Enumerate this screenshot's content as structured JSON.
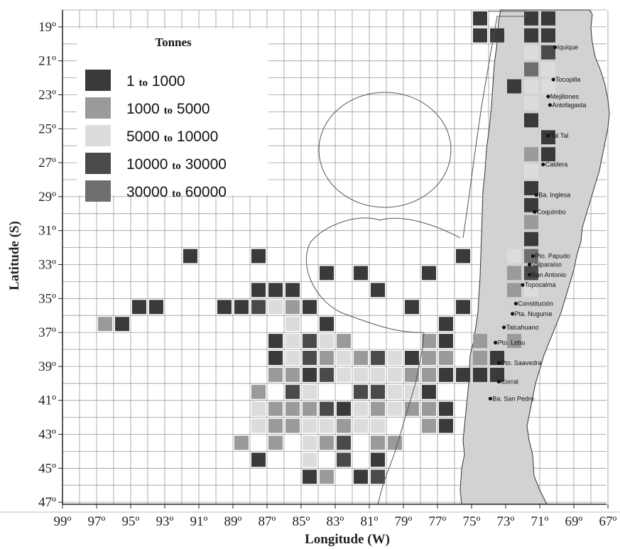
{
  "chart_data": {
    "type": "heatmap",
    "title": "",
    "xlabel": "Longitude (W)",
    "ylabel": "Latitude (S)",
    "xlim": [
      99,
      67
    ],
    "ylim": [
      18,
      47
    ],
    "x_tick_labels": [
      "99º",
      "97º",
      "95º",
      "93º",
      "91º",
      "89º",
      "87º",
      "85º",
      "83º",
      "81º",
      "79º",
      "77º",
      "75º",
      "73º",
      "71º",
      "69º",
      "67º"
    ],
    "y_tick_labels": [
      "19º",
      "21º",
      "23º",
      "25º",
      "27º",
      "29º",
      "31º",
      "33º",
      "35º",
      "37º",
      "39º",
      "41º",
      "43º",
      "45º",
      "47º"
    ],
    "legend": {
      "title": "Tonnes",
      "connector": "to",
      "entries": [
        {
          "from": "1",
          "to": "1000",
          "color": "#3a3a3a"
        },
        {
          "from": "1000",
          "to": "5000",
          "color": "#9a9a9a"
        },
        {
          "from": "5000",
          "to": "10000",
          "color": "#dcdcdc"
        },
        {
          "from": "10000",
          "to": "30000",
          "color": "#4a4a4a"
        },
        {
          "from": "30000",
          "to": "60000",
          "color": "#6e6e6e"
        }
      ]
    },
    "cells": [
      {
        "lon": 75,
        "lat": 19,
        "class": 1
      },
      {
        "lon": 72,
        "lat": 19,
        "class": 1
      },
      {
        "lon": 71,
        "lat": 19,
        "class": 1
      },
      {
        "lon": 75,
        "lat": 20,
        "class": 1
      },
      {
        "lon": 74,
        "lat": 20,
        "class": 1
      },
      {
        "lon": 72,
        "lat": 20,
        "class": 1
      },
      {
        "lon": 71,
        "lat": 20,
        "class": 1
      },
      {
        "lon": 72,
        "lat": 21,
        "class": 3
      },
      {
        "lon": 71,
        "lat": 21,
        "class": 4
      },
      {
        "lon": 72,
        "lat": 22,
        "class": 5
      },
      {
        "lon": 71,
        "lat": 22,
        "class": 3
      },
      {
        "lon": 73,
        "lat": 23,
        "class": 1
      },
      {
        "lon": 72,
        "lat": 23,
        "class": 3
      },
      {
        "lon": 71,
        "lat": 23,
        "class": 3
      },
      {
        "lon": 72,
        "lat": 24,
        "class": 3
      },
      {
        "lon": 72,
        "lat": 25,
        "class": 1
      },
      {
        "lon": 71,
        "lat": 26,
        "class": 1
      },
      {
        "lon": 72,
        "lat": 27,
        "class": 2
      },
      {
        "lon": 71,
        "lat": 27,
        "class": 1
      },
      {
        "lon": 72,
        "lat": 28,
        "class": 3
      },
      {
        "lon": 72,
        "lat": 29,
        "class": 1
      },
      {
        "lon": 72,
        "lat": 30,
        "class": 1
      },
      {
        "lon": 72,
        "lat": 31,
        "class": 2
      },
      {
        "lon": 72,
        "lat": 32,
        "class": 1
      },
      {
        "lon": 92,
        "lat": 33,
        "class": 1
      },
      {
        "lon": 88,
        "lat": 33,
        "class": 1
      },
      {
        "lon": 76,
        "lat": 33,
        "class": 1
      },
      {
        "lon": 73,
        "lat": 33,
        "class": 3
      },
      {
        "lon": 72,
        "lat": 33,
        "class": 5
      },
      {
        "lon": 84,
        "lat": 34,
        "class": 1
      },
      {
        "lon": 82,
        "lat": 34,
        "class": 1
      },
      {
        "lon": 78,
        "lat": 34,
        "class": 1
      },
      {
        "lon": 73,
        "lat": 34,
        "class": 2
      },
      {
        "lon": 72,
        "lat": 34,
        "class": 4
      },
      {
        "lon": 88,
        "lat": 35,
        "class": 1
      },
      {
        "lon": 87,
        "lat": 35,
        "class": 1
      },
      {
        "lon": 86,
        "lat": 35,
        "class": 1
      },
      {
        "lon": 81,
        "lat": 35,
        "class": 1
      },
      {
        "lon": 73,
        "lat": 35,
        "class": 2
      },
      {
        "lon": 72,
        "lat": 35,
        "class": 3
      },
      {
        "lon": 95,
        "lat": 36,
        "class": 1
      },
      {
        "lon": 94,
        "lat": 36,
        "class": 1
      },
      {
        "lon": 90,
        "lat": 36,
        "class": 1
      },
      {
        "lon": 89,
        "lat": 36,
        "class": 1
      },
      {
        "lon": 88,
        "lat": 36,
        "class": 4
      },
      {
        "lon": 87,
        "lat": 36,
        "class": 3
      },
      {
        "lon": 86,
        "lat": 36,
        "class": 2
      },
      {
        "lon": 85,
        "lat": 36,
        "class": 1
      },
      {
        "lon": 79,
        "lat": 36,
        "class": 1
      },
      {
        "lon": 76,
        "lat": 36,
        "class": 1
      },
      {
        "lon": 97,
        "lat": 37,
        "class": 2
      },
      {
        "lon": 96,
        "lat": 37,
        "class": 1
      },
      {
        "lon": 86,
        "lat": 37,
        "class": 3
      },
      {
        "lon": 84,
        "lat": 37,
        "class": 1
      },
      {
        "lon": 77,
        "lat": 37,
        "class": 1
      },
      {
        "lon": 87,
        "lat": 38,
        "class": 1
      },
      {
        "lon": 86,
        "lat": 38,
        "class": 3
      },
      {
        "lon": 85,
        "lat": 38,
        "class": 4
      },
      {
        "lon": 84,
        "lat": 38,
        "class": 3
      },
      {
        "lon": 83,
        "lat": 38,
        "class": 2
      },
      {
        "lon": 78,
        "lat": 38,
        "class": 2
      },
      {
        "lon": 77,
        "lat": 38,
        "class": 1
      },
      {
        "lon": 75,
        "lat": 38,
        "class": 2
      },
      {
        "lon": 73,
        "lat": 38,
        "class": 2
      },
      {
        "lon": 87,
        "lat": 39,
        "class": 1
      },
      {
        "lon": 86,
        "lat": 39,
        "class": 3
      },
      {
        "lon": 85,
        "lat": 39,
        "class": 4
      },
      {
        "lon": 84,
        "lat": 39,
        "class": 2
      },
      {
        "lon": 83,
        "lat": 39,
        "class": 3
      },
      {
        "lon": 82,
        "lat": 39,
        "class": 2
      },
      {
        "lon": 81,
        "lat": 39,
        "class": 4
      },
      {
        "lon": 80,
        "lat": 39,
        "class": 3
      },
      {
        "lon": 79,
        "lat": 39,
        "class": 1
      },
      {
        "lon": 78,
        "lat": 39,
        "class": 2
      },
      {
        "lon": 77,
        "lat": 39,
        "class": 2
      },
      {
        "lon": 75,
        "lat": 39,
        "class": 2
      },
      {
        "lon": 74,
        "lat": 39,
        "class": 1
      },
      {
        "lon": 87,
        "lat": 40,
        "class": 2
      },
      {
        "lon": 86,
        "lat": 40,
        "class": 2
      },
      {
        "lon": 85,
        "lat": 40,
        "class": 1
      },
      {
        "lon": 84,
        "lat": 40,
        "class": 4
      },
      {
        "lon": 83,
        "lat": 40,
        "class": 3
      },
      {
        "lon": 82,
        "lat": 40,
        "class": 3
      },
      {
        "lon": 81,
        "lat": 40,
        "class": 3
      },
      {
        "lon": 80,
        "lat": 40,
        "class": 3
      },
      {
        "lon": 79,
        "lat": 40,
        "class": 2
      },
      {
        "lon": 78,
        "lat": 40,
        "class": 2
      },
      {
        "lon": 77,
        "lat": 40,
        "class": 1
      },
      {
        "lon": 76,
        "lat": 40,
        "class": 1
      },
      {
        "lon": 75,
        "lat": 40,
        "class": 1
      },
      {
        "lon": 74,
        "lat": 40,
        "class": 1
      },
      {
        "lon": 88,
        "lat": 41,
        "class": 2
      },
      {
        "lon": 86,
        "lat": 41,
        "class": 4
      },
      {
        "lon": 85,
        "lat": 41,
        "class": 3
      },
      {
        "lon": 82,
        "lat": 41,
        "class": 4
      },
      {
        "lon": 81,
        "lat": 41,
        "class": 4
      },
      {
        "lon": 80,
        "lat": 41,
        "class": 3
      },
      {
        "lon": 79,
        "lat": 41,
        "class": 3
      },
      {
        "lon": 78,
        "lat": 41,
        "class": 1
      },
      {
        "lon": 88,
        "lat": 42,
        "class": 3
      },
      {
        "lon": 87,
        "lat": 42,
        "class": 2
      },
      {
        "lon": 86,
        "lat": 42,
        "class": 2
      },
      {
        "lon": 85,
        "lat": 42,
        "class": 2
      },
      {
        "lon": 84,
        "lat": 42,
        "class": 4
      },
      {
        "lon": 83,
        "lat": 42,
        "class": 1
      },
      {
        "lon": 82,
        "lat": 42,
        "class": 3
      },
      {
        "lon": 81,
        "lat": 42,
        "class": 2
      },
      {
        "lon": 80,
        "lat": 42,
        "class": 3
      },
      {
        "lon": 79,
        "lat": 42,
        "class": 2
      },
      {
        "lon": 78,
        "lat": 42,
        "class": 2
      },
      {
        "lon": 77,
        "lat": 42,
        "class": 1
      },
      {
        "lon": 88,
        "lat": 43,
        "class": 3
      },
      {
        "lon": 87,
        "lat": 43,
        "class": 2
      },
      {
        "lon": 86,
        "lat": 43,
        "class": 2
      },
      {
        "lon": 85,
        "lat": 43,
        "class": 3
      },
      {
        "lon": 84,
        "lat": 43,
        "class": 3
      },
      {
        "lon": 83,
        "lat": 43,
        "class": 2
      },
      {
        "lon": 82,
        "lat": 43,
        "class": 3
      },
      {
        "lon": 81,
        "lat": 43,
        "class": 3
      },
      {
        "lon": 78,
        "lat": 43,
        "class": 2
      },
      {
        "lon": 77,
        "lat": 43,
        "class": 1
      },
      {
        "lon": 89,
        "lat": 44,
        "class": 2
      },
      {
        "lon": 87,
        "lat": 44,
        "class": 2
      },
      {
        "lon": 85,
        "lat": 44,
        "class": 3
      },
      {
        "lon": 84,
        "lat": 44,
        "class": 2
      },
      {
        "lon": 83,
        "lat": 44,
        "class": 4
      },
      {
        "lon": 81,
        "lat": 44,
        "class": 2
      },
      {
        "lon": 80,
        "lat": 44,
        "class": 2
      },
      {
        "lon": 88,
        "lat": 45,
        "class": 1
      },
      {
        "lon": 85,
        "lat": 45,
        "class": 3
      },
      {
        "lon": 83,
        "lat": 45,
        "class": 4
      },
      {
        "lon": 81,
        "lat": 45,
        "class": 1
      },
      {
        "lon": 85,
        "lat": 46,
        "class": 1
      },
      {
        "lon": 84,
        "lat": 46,
        "class": 2
      },
      {
        "lon": 82,
        "lat": 46,
        "class": 1
      },
      {
        "lon": 81,
        "lat": 46,
        "class": 4
      }
    ],
    "cities": [
      {
        "name": "Iquique",
        "lon": 70.1,
        "lat": 20.2
      },
      {
        "name": "Tocopilla",
        "lon": 70.2,
        "lat": 22.1
      },
      {
        "name": "Mejillones",
        "lon": 70.5,
        "lat": 23.1
      },
      {
        "name": "Antofagasta",
        "lon": 70.4,
        "lat": 23.6
      },
      {
        "name": "Tal Tal",
        "lon": 70.5,
        "lat": 25.4
      },
      {
        "name": "Caldera",
        "lon": 70.8,
        "lat": 27.1
      },
      {
        "name": "Ba. Inglesa",
        "lon": 71.2,
        "lat": 28.9
      },
      {
        "name": "Coquimbo",
        "lon": 71.3,
        "lat": 29.9
      },
      {
        "name": "Pto. Papudo",
        "lon": 71.4,
        "lat": 32.5
      },
      {
        "name": "Valparaíso",
        "lon": 71.6,
        "lat": 33.0
      },
      {
        "name": "San Antonio",
        "lon": 71.6,
        "lat": 33.6
      },
      {
        "name": "Topocalma",
        "lon": 72.0,
        "lat": 34.2
      },
      {
        "name": "Constitución",
        "lon": 72.4,
        "lat": 35.3
      },
      {
        "name": "Pta. Nugurne",
        "lon": 72.6,
        "lat": 35.9
      },
      {
        "name": "Talcahuano",
        "lon": 73.1,
        "lat": 36.7
      },
      {
        "name": "Pto. Lebu",
        "lon": 73.6,
        "lat": 37.6
      },
      {
        "name": "Pto. Saavedra",
        "lon": 73.4,
        "lat": 38.8
      },
      {
        "name": "Corral",
        "lon": 73.4,
        "lat": 39.9
      },
      {
        "name": "Ba. San Pedro",
        "lon": 73.9,
        "lat": 40.9
      }
    ]
  }
}
